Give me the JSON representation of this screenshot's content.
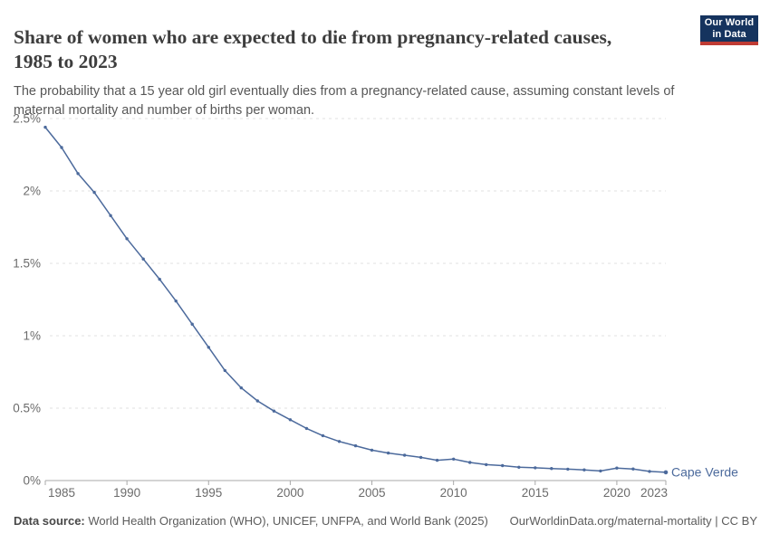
{
  "header": {
    "title": "Share of women who are expected to die from pregnancy-related causes, 1985 to 2023",
    "subtitle": "The probability that a 15 year old girl eventually dies from a pregnancy-related cause, assuming constant levels of maternal mortality and number of births per woman.",
    "logo": {
      "line1": "Our World",
      "line2": "in Data",
      "bg_color": "#15335e",
      "accent_color": "#bf3b34"
    }
  },
  "chart_data": {
    "type": "line",
    "title": "Share of women who are expected to die from pregnancy-related causes",
    "xlabel": "",
    "ylabel": "",
    "xlim": [
      1985,
      2023
    ],
    "ylim": [
      0,
      2.5
    ],
    "grid": "horizontal-dashed",
    "legend_position": "end-of-line",
    "x_ticks": [
      "1985",
      "1990",
      "1995",
      "2000",
      "2005",
      "2010",
      "2015",
      "2020",
      "2023"
    ],
    "y_ticks": [
      {
        "value": 0,
        "label": "0%"
      },
      {
        "value": 0.5,
        "label": "0.5%"
      },
      {
        "value": 1,
        "label": "1%"
      },
      {
        "value": 1.5,
        "label": "1.5%"
      },
      {
        "value": 2,
        "label": "2%"
      },
      {
        "value": 2.5,
        "label": "2.5%"
      }
    ],
    "series": [
      {
        "name": "Cape Verde",
        "color": "#4C6A9C",
        "x": [
          1985,
          1986,
          1987,
          1988,
          1989,
          1990,
          1991,
          1992,
          1993,
          1994,
          1995,
          1996,
          1997,
          1998,
          1999,
          2000,
          2001,
          2002,
          2003,
          2004,
          2005,
          2006,
          2007,
          2008,
          2009,
          2010,
          2011,
          2012,
          2013,
          2014,
          2015,
          2016,
          2017,
          2018,
          2019,
          2020,
          2021,
          2022,
          2023
        ],
        "values": [
          2.44,
          2.3,
          2.12,
          1.99,
          1.83,
          1.67,
          1.53,
          1.39,
          1.24,
          1.08,
          0.92,
          0.76,
          0.64,
          0.55,
          0.48,
          0.42,
          0.36,
          0.31,
          0.27,
          0.24,
          0.21,
          0.19,
          0.175,
          0.16,
          0.14,
          0.148,
          0.125,
          0.11,
          0.103,
          0.092,
          0.088,
          0.083,
          0.079,
          0.074,
          0.066,
          0.086,
          0.08,
          0.063,
          0.057
        ]
      }
    ],
    "colors": {
      "gridline": "#e2e2e2",
      "axis": "#a8a8a8",
      "tick_label": "#6b6b6b"
    }
  },
  "footer": {
    "source_label": "Data source:",
    "source_text": " World Health Organization (WHO), UNICEF, UNFPA, and World Bank (2025)",
    "link_text": "OurWorldinData.org/maternal-mortality | CC BY"
  }
}
